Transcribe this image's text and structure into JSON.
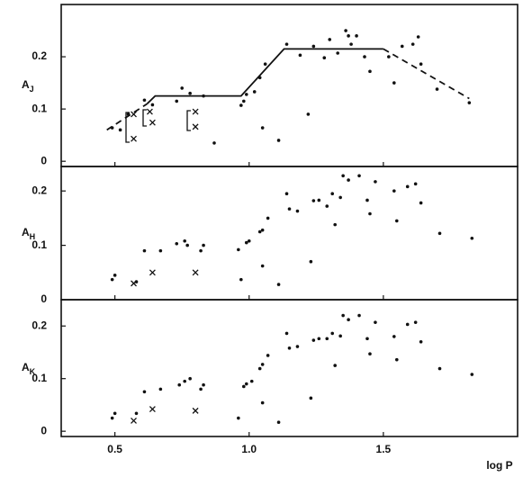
{
  "chart_data": [
    {
      "type": "scatter",
      "ylabel_main": "A",
      "ylabel_sub": "J",
      "xlim": [
        0.3,
        2.0
      ],
      "ylim": [
        -0.01,
        0.3
      ],
      "yticks": [
        0,
        0.1,
        0.2
      ],
      "series": [
        {
          "marker": "dot",
          "color": "#111",
          "x": [
            0.49,
            0.52,
            0.55,
            0.61,
            0.64,
            0.73,
            0.75,
            0.78,
            0.83,
            0.87,
            0.97,
            0.98,
            0.99,
            1.02,
            1.04,
            1.06,
            1.05,
            1.11,
            1.14,
            1.19,
            1.22,
            1.24,
            1.28,
            1.3,
            1.33,
            1.36,
            1.37,
            1.38,
            1.4,
            1.43,
            1.45,
            1.52,
            1.54,
            1.57,
            1.61,
            1.63,
            1.64,
            1.7,
            1.82
          ],
          "values": [
            0.064,
            0.06,
            0.09,
            0.117,
            0.108,
            0.115,
            0.14,
            0.13,
            0.125,
            0.035,
            0.107,
            0.115,
            0.128,
            0.133,
            0.16,
            0.186,
            0.064,
            0.04,
            0.224,
            0.203,
            0.09,
            0.22,
            0.198,
            0.233,
            0.207,
            0.25,
            0.24,
            0.224,
            0.24,
            0.2,
            0.172,
            0.2,
            0.15,
            0.22,
            0.224,
            0.238,
            0.186,
            0.138,
            0.112
          ]
        },
        {
          "marker": "x",
          "color": "#111",
          "x": [
            0.57,
            0.57,
            0.63,
            0.64,
            0.8,
            0.8
          ],
          "values": [
            0.09,
            0.043,
            0.095,
            0.074,
            0.095,
            0.066
          ]
        },
        {
          "line": "dashed",
          "color": "#111",
          "x": [
            0.47,
            0.62
          ],
          "values": [
            0.06,
            0.11
          ]
        },
        {
          "line": "solid",
          "color": "#111",
          "x": [
            0.62,
            0.65,
            0.97,
            1.13,
            1.5
          ],
          "values": [
            0.11,
            0.125,
            0.125,
            0.215,
            0.215
          ]
        },
        {
          "line": "dashed",
          "color": "#111",
          "x": [
            1.5,
            1.82
          ],
          "values": [
            0.215,
            0.12
          ]
        }
      ]
    },
    {
      "type": "scatter",
      "ylabel_main": "A",
      "ylabel_sub": "H",
      "xlim": [
        0.3,
        2.0
      ],
      "ylim": [
        0,
        0.245
      ],
      "yticks": [
        0,
        0.1,
        0.2
      ],
      "series": [
        {
          "marker": "dot",
          "color": "#111",
          "x": [
            0.49,
            0.5,
            0.58,
            0.61,
            0.67,
            0.73,
            0.76,
            0.77,
            0.82,
            0.83,
            0.96,
            0.97,
            0.99,
            1.0,
            1.04,
            1.05,
            1.05,
            1.07,
            1.11,
            1.14,
            1.15,
            1.18,
            1.23,
            1.24,
            1.26,
            1.29,
            1.31,
            1.32,
            1.34,
            1.35,
            1.37,
            1.41,
            1.44,
            1.45,
            1.47,
            1.54,
            1.55,
            1.59,
            1.62,
            1.64,
            1.71,
            1.83
          ],
          "values": [
            0.037,
            0.045,
            0.033,
            0.09,
            0.09,
            0.103,
            0.108,
            0.1,
            0.09,
            0.1,
            0.092,
            0.037,
            0.105,
            0.108,
            0.125,
            0.128,
            0.062,
            0.15,
            0.028,
            0.195,
            0.167,
            0.163,
            0.07,
            0.182,
            0.183,
            0.172,
            0.195,
            0.138,
            0.188,
            0.228,
            0.22,
            0.228,
            0.183,
            0.158,
            0.217,
            0.2,
            0.145,
            0.208,
            0.213,
            0.178,
            0.122,
            0.113
          ]
        },
        {
          "marker": "x",
          "color": "#111",
          "x": [
            0.57,
            0.64,
            0.8
          ],
          "values": [
            0.03,
            0.05,
            0.05
          ]
        }
      ]
    },
    {
      "type": "scatter",
      "ylabel_main": "A",
      "ylabel_sub": "K",
      "xlabel": "log P",
      "xlim": [
        0.3,
        2.0
      ],
      "ylim": [
        -0.01,
        0.25
      ],
      "yticks": [
        0,
        0.1,
        0.2
      ],
      "xticks": [
        0.5,
        {
          "value": 1,
          "label": "1.0"
        },
        1.5
      ],
      "series": [
        {
          "marker": "dot",
          "color": "#111",
          "x": [
            0.49,
            0.5,
            0.58,
            0.61,
            0.67,
            0.74,
            0.76,
            0.78,
            0.82,
            0.83,
            0.96,
            0.98,
            0.99,
            1.01,
            1.04,
            1.05,
            1.05,
            1.07,
            1.11,
            1.14,
            1.15,
            1.18,
            1.23,
            1.24,
            1.26,
            1.29,
            1.31,
            1.32,
            1.34,
            1.35,
            1.37,
            1.41,
            1.44,
            1.45,
            1.47,
            1.54,
            1.55,
            1.59,
            1.62,
            1.64,
            1.71,
            1.83
          ],
          "values": [
            0.025,
            0.034,
            0.034,
            0.075,
            0.08,
            0.088,
            0.095,
            0.1,
            0.08,
            0.088,
            0.025,
            0.085,
            0.09,
            0.095,
            0.119,
            0.127,
            0.054,
            0.144,
            0.017,
            0.186,
            0.158,
            0.161,
            0.063,
            0.173,
            0.176,
            0.176,
            0.186,
            0.125,
            0.181,
            0.22,
            0.212,
            0.22,
            0.176,
            0.147,
            0.207,
            0.18,
            0.136,
            0.203,
            0.207,
            0.17,
            0.119,
            0.108
          ]
        },
        {
          "marker": "x",
          "color": "#111",
          "x": [
            0.57,
            0.64,
            0.8
          ],
          "values": [
            0.02,
            0.042,
            0.039
          ]
        }
      ]
    }
  ]
}
